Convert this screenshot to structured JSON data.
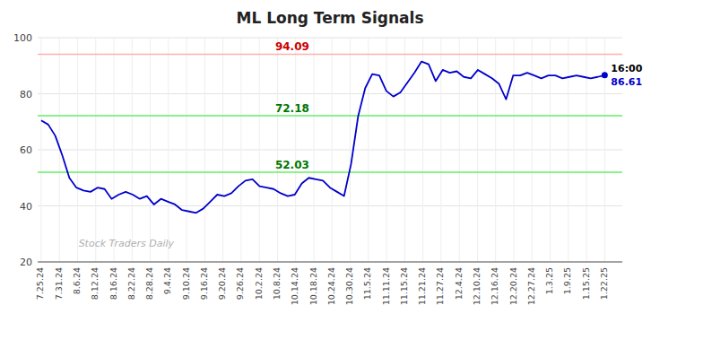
{
  "chart_data": {
    "type": "line",
    "title": "ML Long Term Signals",
    "color": "#0000cc",
    "marker": "last",
    "grid": true,
    "x": [
      0,
      1,
      2,
      3,
      4,
      5,
      6,
      7,
      8,
      9,
      10,
      11,
      12,
      13,
      14,
      15,
      16,
      17,
      18,
      19,
      20,
      21,
      22,
      23,
      24,
      25,
      26,
      27,
      28,
      29,
      30,
      31,
      32,
      33,
      34,
      35,
      36,
      37,
      38,
      39,
      40,
      41,
      42,
      43,
      44,
      45,
      46,
      47,
      48,
      49,
      50,
      51,
      52,
      53,
      54,
      55,
      56,
      57,
      58,
      59,
      60,
      61,
      62,
      63,
      64,
      65,
      66,
      67,
      68,
      69,
      70,
      71,
      72,
      73,
      74,
      75,
      76,
      77,
      78,
      79,
      80
    ],
    "values": [
      70.5,
      69.0,
      65.0,
      58.0,
      50.0,
      46.5,
      45.5,
      45.0,
      46.5,
      46.0,
      42.5,
      44.0,
      45.0,
      44.0,
      42.5,
      43.5,
      40.5,
      42.5,
      41.5,
      40.5,
      38.5,
      38.0,
      37.5,
      39.0,
      41.5,
      44.0,
      43.5,
      44.5,
      47.0,
      49.0,
      49.5,
      47.0,
      46.5,
      46.0,
      44.5,
      43.5,
      44.0,
      48.0,
      50.0,
      49.5,
      49.0,
      46.5,
      45.0,
      43.5,
      55.0,
      72.0,
      82.0,
      87.0,
      86.5,
      81.0,
      79.0,
      80.5,
      84.0,
      87.5,
      91.5,
      90.5,
      84.5,
      88.5,
      87.5,
      88.0,
      86.0,
      85.5,
      88.5,
      87.0,
      85.5,
      83.5,
      78.0,
      86.5,
      86.5,
      87.5,
      86.5,
      85.5,
      86.5,
      86.5,
      85.5,
      86.0,
      86.5,
      86.0,
      85.5,
      86.0,
      86.61
    ],
    "xlim": [
      -0.5,
      82.5
    ],
    "xticks": [
      {
        "value": 0,
        "label": "7.25.24"
      },
      {
        "value": 2.580645161290323,
        "label": "7.31.24"
      },
      {
        "value": 5.161290322580645,
        "label": "8.6.24"
      },
      {
        "value": 7.741935483870968,
        "label": "8.12.24"
      },
      {
        "value": 10.32258064516129,
        "label": "8.16.24"
      },
      {
        "value": 12.903225806451612,
        "label": "8.22.24"
      },
      {
        "value": 15.483870967741936,
        "label": "8.28.24"
      },
      {
        "value": 18.06451612903226,
        "label": "9.4.24"
      },
      {
        "value": 20.64516129032258,
        "label": "9.10.24"
      },
      {
        "value": 23.225806451612904,
        "label": "9.16.24"
      },
      {
        "value": 25.806451612903224,
        "label": "9.20.24"
      },
      {
        "value": 28.387096774193548,
        "label": "9.26.24"
      },
      {
        "value": 30.967741935483872,
        "label": "10.2.24"
      },
      {
        "value": 33.54838709677419,
        "label": "10.8.24"
      },
      {
        "value": 36.12903225806452,
        "label": "10.14.24"
      },
      {
        "value": 38.70967741935484,
        "label": "10.18.24"
      },
      {
        "value": 41.29032258064516,
        "label": "10.24.24"
      },
      {
        "value": 43.87096774193548,
        "label": "10.30.24"
      },
      {
        "value": 46.45161290322581,
        "label": "11.5.24"
      },
      {
        "value": 49.03225806451613,
        "label": "11.11.24"
      },
      {
        "value": 51.61290322580645,
        "label": "11.15.24"
      },
      {
        "value": 54.193548387096776,
        "label": "11.21.24"
      },
      {
        "value": 56.774193548387096,
        "label": "11.27.24"
      },
      {
        "value": 59.354838709677416,
        "label": "12.4.24"
      },
      {
        "value": 61.935483870967744,
        "label": "12.10.24"
      },
      {
        "value": 64.51612903225806,
        "label": "12.16.24"
      },
      {
        "value": 67.09677419354838,
        "label": "12.20.24"
      },
      {
        "value": 69.6774193548387,
        "label": "12.27.24"
      },
      {
        "value": 72.25806451612904,
        "label": "1.3.25"
      },
      {
        "value": 74.83870967741936,
        "label": "1.9.25"
      },
      {
        "value": 77.41935483870968,
        "label": "1.15.25"
      },
      {
        "value": 80,
        "label": "1.22.25"
      }
    ],
    "ylim": [
      20,
      100
    ],
    "yticks": [
      20,
      40,
      60,
      80,
      100
    ],
    "hlines": [
      {
        "value": 94.09,
        "label": "94.09",
        "color": "#ffb0b0",
        "label_color": "#cc0000"
      },
      {
        "value": 72.18,
        "label": "72.18",
        "color": "#66ee66",
        "label_color": "#007700"
      },
      {
        "value": 52.03,
        "label": "52.03",
        "color": "#66ee66",
        "label_color": "#007700"
      }
    ],
    "annotations": [
      {
        "text": "16:00",
        "color": "#000000"
      },
      {
        "text": "86.61",
        "color": "#0000cc"
      },
      {
        "text": "Stock Traders Daily",
        "color": "#b0b0b0"
      }
    ]
  }
}
